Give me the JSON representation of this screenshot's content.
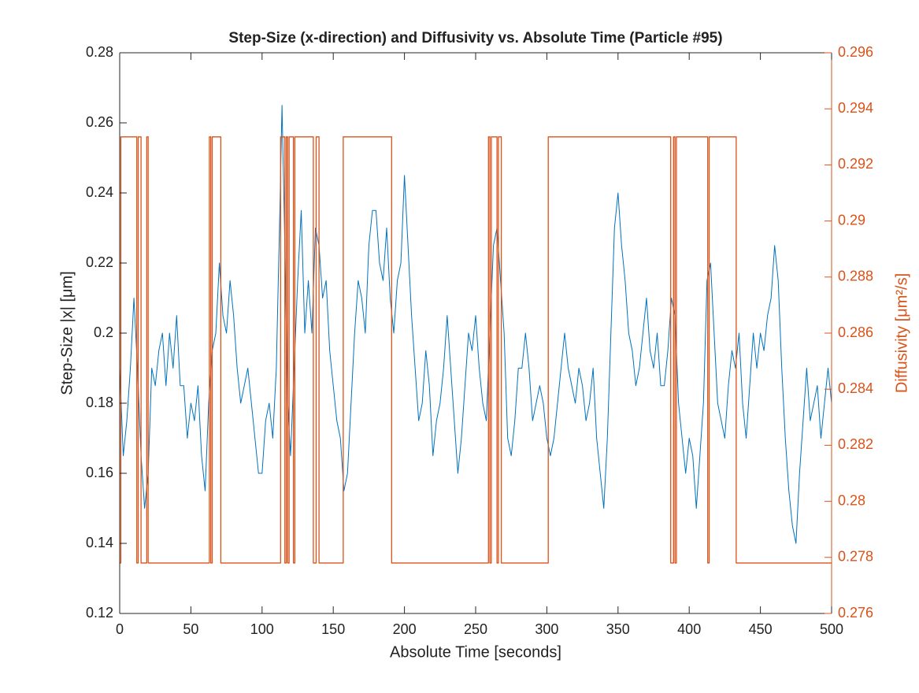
{
  "chart_data": {
    "type": "line",
    "title": "Step-Size (x-direction) and Diffusivity vs. Absolute Time (Particle #95)",
    "xlabel": "Absolute Time [seconds]",
    "ylabel": "Step-Size |x| [μm]",
    "y2label": "Diffusivity [μm²/s]",
    "xlim": [
      0,
      500
    ],
    "xticks": [
      0,
      50,
      100,
      150,
      200,
      250,
      300,
      350,
      400,
      450,
      500
    ],
    "ylim": [
      0.12,
      0.28
    ],
    "yticks": [
      0.12,
      0.14,
      0.16,
      0.18,
      0.2,
      0.22,
      0.24,
      0.26,
      0.28
    ],
    "y2lim": [
      0.276,
      0.296
    ],
    "y2ticks": [
      0.276,
      0.278,
      0.28,
      0.282,
      0.284,
      0.286,
      0.288,
      0.29,
      0.292,
      0.294,
      0.296
    ],
    "series": [
      {
        "color": "#0072bd",
        "axis": "y",
        "x": [
          0,
          2.5,
          5,
          7.5,
          10,
          12.5,
          15,
          17.5,
          20,
          22.5,
          25,
          27.5,
          30,
          32.5,
          35,
          37.5,
          40,
          42.5,
          45,
          47.5,
          50,
          52.5,
          55,
          57.5,
          60,
          62.5,
          65,
          67.5,
          70,
          72.5,
          75,
          77.5,
          80,
          82.5,
          85,
          87.5,
          90,
          92.5,
          95,
          97.5,
          100,
          102.5,
          105,
          107.5,
          110,
          112.5,
          114,
          116,
          118,
          120,
          122.5,
          125,
          127.5,
          130,
          132.5,
          135,
          137.5,
          140,
          142.5,
          145,
          147.5,
          150,
          152.5,
          155,
          157.5,
          160,
          162.5,
          165,
          167.5,
          170,
          172.5,
          175,
          177.5,
          180,
          182.5,
          185,
          187.5,
          190,
          192.5,
          195,
          197.5,
          200,
          202.5,
          205,
          207.5,
          210,
          212.5,
          215,
          217.5,
          220,
          222.5,
          225,
          227.5,
          230,
          232.5,
          235,
          237.5,
          240,
          242.5,
          245,
          247.5,
          250,
          252.5,
          255,
          257.5,
          260,
          262.5,
          265,
          267.5,
          270,
          272.5,
          275,
          277.5,
          280,
          282.5,
          285,
          287.5,
          290,
          292.5,
          295,
          297.5,
          300,
          302.5,
          305,
          307.5,
          310,
          312.5,
          315,
          317.5,
          320,
          322.5,
          325,
          327.5,
          330,
          332.5,
          335,
          337.5,
          340,
          342.5,
          345,
          347.5,
          350,
          352.5,
          355,
          357.5,
          360,
          362.5,
          365,
          367.5,
          370,
          372.5,
          375,
          377.5,
          380,
          382.5,
          385,
          387.5,
          390,
          392.5,
          395,
          397.5,
          400,
          402.5,
          405,
          407.5,
          410,
          412.5,
          415,
          417.5,
          420,
          422.5,
          425,
          427.5,
          430,
          432.5,
          435,
          437.5,
          440,
          442.5,
          445,
          447.5,
          450,
          452.5,
          455,
          457.5,
          460,
          462.5,
          465,
          467.5,
          470,
          472.5,
          475,
          477.5,
          480,
          482.5,
          485,
          487.5,
          490,
          492.5,
          495,
          497.5,
          500
        ],
        "values": [
          0.19,
          0.165,
          0.175,
          0.19,
          0.21,
          0.19,
          0.165,
          0.15,
          0.16,
          0.19,
          0.185,
          0.195,
          0.2,
          0.185,
          0.2,
          0.19,
          0.205,
          0.185,
          0.185,
          0.17,
          0.18,
          0.175,
          0.185,
          0.165,
          0.155,
          0.18,
          0.195,
          0.2,
          0.22,
          0.205,
          0.2,
          0.215,
          0.205,
          0.19,
          0.18,
          0.185,
          0.19,
          0.18,
          0.17,
          0.16,
          0.16,
          0.175,
          0.18,
          0.17,
          0.19,
          0.235,
          0.265,
          0.225,
          0.18,
          0.165,
          0.19,
          0.215,
          0.235,
          0.2,
          0.215,
          0.2,
          0.23,
          0.225,
          0.21,
          0.215,
          0.195,
          0.185,
          0.175,
          0.17,
          0.155,
          0.16,
          0.18,
          0.2,
          0.215,
          0.21,
          0.2,
          0.225,
          0.235,
          0.235,
          0.22,
          0.215,
          0.23,
          0.21,
          0.2,
          0.215,
          0.22,
          0.245,
          0.225,
          0.205,
          0.19,
          0.175,
          0.18,
          0.195,
          0.185,
          0.165,
          0.175,
          0.18,
          0.19,
          0.205,
          0.19,
          0.175,
          0.16,
          0.17,
          0.185,
          0.2,
          0.195,
          0.205,
          0.19,
          0.18,
          0.175,
          0.2,
          0.225,
          0.23,
          0.215,
          0.2,
          0.17,
          0.165,
          0.175,
          0.19,
          0.19,
          0.2,
          0.19,
          0.175,
          0.18,
          0.185,
          0.18,
          0.17,
          0.165,
          0.17,
          0.18,
          0.19,
          0.2,
          0.19,
          0.185,
          0.18,
          0.19,
          0.185,
          0.175,
          0.18,
          0.19,
          0.17,
          0.16,
          0.15,
          0.17,
          0.2,
          0.23,
          0.24,
          0.225,
          0.215,
          0.2,
          0.195,
          0.185,
          0.19,
          0.2,
          0.21,
          0.195,
          0.19,
          0.2,
          0.185,
          0.185,
          0.195,
          0.21,
          0.205,
          0.18,
          0.17,
          0.16,
          0.17,
          0.165,
          0.15,
          0.165,
          0.18,
          0.215,
          0.22,
          0.2,
          0.18,
          0.175,
          0.17,
          0.185,
          0.195,
          0.19,
          0.2,
          0.18,
          0.17,
          0.185,
          0.2,
          0.19,
          0.2,
          0.195,
          0.205,
          0.21,
          0.225,
          0.215,
          0.19,
          0.17,
          0.155,
          0.145,
          0.14,
          0.16,
          0.175,
          0.19,
          0.175,
          0.18,
          0.185,
          0.17,
          0.18,
          0.19,
          0.18
        ]
      },
      {
        "color": "#d95319",
        "axis": "y2",
        "x": [
          0,
          0.8,
          0.8,
          12,
          12,
          13,
          13,
          15,
          15,
          19,
          19,
          20,
          20,
          63,
          63,
          64,
          64,
          65,
          65,
          71,
          71,
          113,
          113,
          116,
          116,
          117,
          117,
          118,
          118,
          119,
          119,
          122,
          122,
          123,
          123,
          136,
          136,
          138,
          138,
          140,
          140,
          157,
          157,
          191,
          191,
          259,
          259,
          260,
          260,
          261,
          261,
          265,
          265,
          266,
          266,
          268,
          268,
          301,
          301,
          387,
          387,
          389,
          389,
          390,
          390,
          391,
          391,
          413,
          413,
          414,
          414,
          433,
          433,
          500
        ],
        "values": [
          0.2778,
          0.2778,
          0.293,
          0.293,
          0.2778,
          0.2778,
          0.293,
          0.293,
          0.2778,
          0.2778,
          0.293,
          0.293,
          0.2778,
          0.2778,
          0.293,
          0.293,
          0.2778,
          0.2778,
          0.293,
          0.293,
          0.2778,
          0.2778,
          0.293,
          0.293,
          0.2778,
          0.2778,
          0.293,
          0.293,
          0.2778,
          0.2778,
          0.293,
          0.293,
          0.2778,
          0.2778,
          0.293,
          0.293,
          0.2778,
          0.2778,
          0.293,
          0.293,
          0.2778,
          0.2778,
          0.293,
          0.293,
          0.2778,
          0.2778,
          0.293,
          0.293,
          0.2778,
          0.2778,
          0.293,
          0.293,
          0.2778,
          0.2778,
          0.293,
          0.293,
          0.2778,
          0.2778,
          0.293,
          0.293,
          0.2778,
          0.2778,
          0.293,
          0.293,
          0.2778,
          0.2778,
          0.293,
          0.293,
          0.2778,
          0.2778,
          0.293,
          0.293,
          0.2778,
          0.2778
        ]
      }
    ]
  }
}
